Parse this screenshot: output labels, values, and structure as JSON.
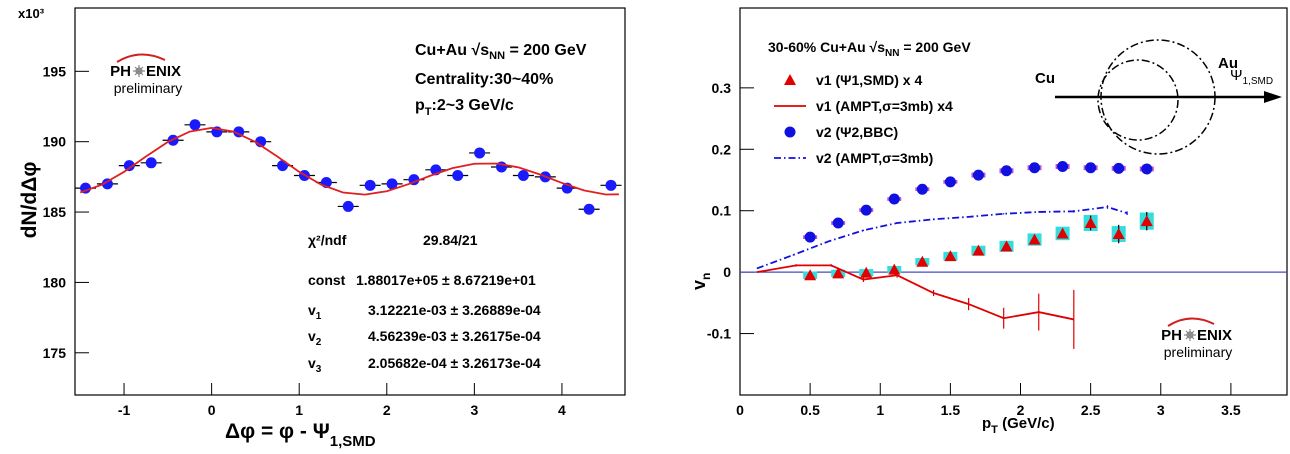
{
  "chart_data": [
    {
      "type": "scatter",
      "y_multiplier": "x10³",
      "ylabel": "dN/dΔφ",
      "xlabel": [
        "Δφ = φ - Ψ",
        "1,SMD"
      ],
      "annotations": [
        [
          "Cu+Au √s",
          "NN",
          " = 200 GeV"
        ],
        [
          "Centrality:30~40%"
        ],
        [
          "p",
          "T",
          ":2~3 GeV/c"
        ]
      ],
      "logo": [
        "PH",
        "ENIX",
        "preliminary"
      ],
      "fit_stats": [
        {
          "name": [
            "χ²/ndf"
          ],
          "value": "29.84/21"
        },
        {
          "name": [
            "const"
          ],
          "value": "1.88017e+05 ± 8.67219e+01"
        },
        {
          "name": [
            "v",
            "1"
          ],
          "value": "3.12221e-03 ± 3.26889e-04"
        },
        {
          "name": [
            "v",
            "2"
          ],
          "value": "4.56239e-03 ± 3.26175e-04"
        },
        {
          "name": [
            "v",
            "3"
          ],
          "value": "2.05682e-04 ± 3.26173e-04"
        }
      ],
      "xlim": [
        -1.56,
        4.72
      ],
      "ylim": [
        172,
        199.5
      ],
      "xticks": [
        -1,
        0,
        1,
        2,
        3,
        4
      ],
      "yticks": [
        175,
        180,
        185,
        190,
        195
      ],
      "series": [
        {
          "mark": "circle",
          "color": "#1a1aff",
          "xerr": 0.12,
          "x": [
            -1.44,
            -1.19,
            -0.94,
            -0.69,
            -0.44,
            -0.19,
            0.06,
            0.31,
            0.56,
            0.81,
            1.06,
            1.31,
            1.56,
            1.81,
            2.06,
            2.31,
            2.56,
            2.81,
            3.06,
            3.31,
            3.56,
            3.81,
            4.06,
            4.31,
            4.56
          ],
          "values": [
            186.7,
            187.0,
            188.3,
            188.5,
            190.1,
            191.2,
            190.7,
            190.7,
            190.0,
            188.3,
            187.6,
            187.1,
            185.4,
            186.9,
            187.0,
            187.3,
            188.0,
            187.6,
            189.2,
            188.2,
            187.6,
            187.5,
            186.7,
            185.2,
            186.9
          ],
          "errors": [
            0.25,
            0.25,
            0.25,
            0.25,
            0.25,
            0.25,
            0.25,
            0.25,
            0.25,
            0.25,
            0.25,
            0.25,
            0.25,
            0.25,
            0.25,
            0.25,
            0.25,
            0.25,
            0.25,
            0.25,
            0.25,
            0.25,
            0.25,
            0.25,
            0.25
          ]
        },
        {
          "mark": "line",
          "line_style": "solid",
          "color": "#e02020",
          "x": [
            -1.5,
            -1.25,
            -1.0,
            -0.75,
            -0.5,
            -0.25,
            0,
            0.25,
            0.5,
            0.75,
            1.0,
            1.25,
            1.5,
            1.75,
            2.0,
            2.25,
            2.5,
            2.75,
            3.0,
            3.25,
            3.5,
            3.75,
            4.0,
            4.25,
            4.5,
            4.65
          ],
          "values": [
            186.39,
            186.95,
            187.86,
            188.95,
            189.98,
            190.72,
            190.98,
            190.72,
            189.98,
            188.95,
            187.86,
            186.95,
            186.39,
            186.24,
            186.48,
            186.99,
            187.59,
            188.12,
            188.43,
            188.45,
            188.18,
            187.67,
            187.07,
            186.54,
            186.25,
            186.26
          ]
        }
      ]
    },
    {
      "type": "scatter",
      "annotations": [
        [
          "30-60% Cu+Au √s",
          "NN",
          " = 200 GeV"
        ]
      ],
      "ylabel": [
        "v",
        "n"
      ],
      "xlabel": [
        "p",
        "T",
        " (GeV/c)"
      ],
      "diagram_labels": [
        "Cu",
        "Au",
        [
          "Ψ",
          "1,SMD"
        ]
      ],
      "logo": [
        "PH",
        "ENIX",
        "preliminary"
      ],
      "legend": "top-left",
      "hline": {
        "value": 0,
        "color": "#4848c8"
      },
      "xlim": [
        0,
        3.9
      ],
      "ylim": [
        -0.2,
        0.43
      ],
      "xticks": [
        0,
        0.5,
        1,
        1.5,
        2,
        2.5,
        3,
        3.5
      ],
      "yticks": [
        -0.1,
        0,
        0.1,
        0.2,
        0.3
      ],
      "series": [
        {
          "name": "v1 (Ψ1,SMD) x 4",
          "mark": "triangle",
          "color": "#e00000",
          "sys_color": "#33dddd",
          "x": [
            0.5,
            0.7,
            0.9,
            1.1,
            1.3,
            1.5,
            1.7,
            1.9,
            2.1,
            2.3,
            2.5,
            2.7,
            2.9
          ],
          "values": [
            -0.005,
            -0.002,
            -0.001,
            0.004,
            0.017,
            0.026,
            0.035,
            0.042,
            0.053,
            0.063,
            0.08,
            0.062,
            0.083
          ],
          "errors": [
            0.003,
            0.003,
            0.003,
            0.003,
            0.003,
            0.003,
            0.004,
            0.005,
            0.006,
            0.008,
            0.012,
            0.015,
            0.015
          ],
          "sys": [
            0.006,
            0.006,
            0.006,
            0.006,
            0.006,
            0.007,
            0.008,
            0.009,
            0.01,
            0.011,
            0.013,
            0.013,
            0.014
          ]
        },
        {
          "name": "v1 (AMPT,σ=3mb) x4",
          "mark": "line",
          "line_style": "solid",
          "color": "#e00000",
          "x": [
            0.12,
            0.4,
            0.65,
            0.88,
            1.12,
            1.38,
            1.63,
            1.88,
            2.13,
            2.38
          ],
          "values": [
            0.0,
            0.011,
            0.011,
            -0.012,
            -0.005,
            -0.034,
            -0.052,
            -0.075,
            -0.065,
            -0.077
          ],
          "errors": [
            0.0,
            0.002,
            0.002,
            0.004,
            0.004,
            0.005,
            0.01,
            0.017,
            0.03,
            0.048
          ]
        },
        {
          "name": "v2 (Ψ2,BBC)",
          "mark": "circle",
          "color": "#1010e0",
          "sys_color": "#c050d0",
          "x": [
            0.5,
            0.7,
            0.9,
            1.1,
            1.3,
            1.5,
            1.7,
            1.9,
            2.1,
            2.3,
            2.5,
            2.7,
            2.9
          ],
          "values": [
            0.057,
            0.08,
            0.101,
            0.119,
            0.135,
            0.147,
            0.158,
            0.165,
            0.17,
            0.172,
            0.17,
            0.169,
            0.168
          ],
          "errors": [
            0.001,
            0.001,
            0.001,
            0.001,
            0.001,
            0.001,
            0.001,
            0.001,
            0.001,
            0.002,
            0.002,
            0.002,
            0.002
          ],
          "sys": [
            0.003,
            0.003,
            0.003,
            0.003,
            0.003,
            0.003,
            0.004,
            0.004,
            0.004,
            0.004,
            0.004,
            0.004,
            0.004
          ]
        },
        {
          "name": "v2 (AMPT,σ=3mb)",
          "mark": "line",
          "line_style": "dashdot",
          "color": "#1010e0",
          "x": [
            0.12,
            0.38,
            0.63,
            0.88,
            1.12,
            1.38,
            1.63,
            1.88,
            2.13,
            2.38,
            2.62,
            2.76
          ],
          "values": [
            0.006,
            0.028,
            0.05,
            0.068,
            0.08,
            0.086,
            0.09,
            0.095,
            0.098,
            0.099,
            0.106,
            0.096
          ],
          "errors": [
            0.0,
            0.001,
            0.001,
            0.001,
            0.001,
            0.001,
            0.001,
            0.001,
            0.001,
            0.002,
            0.003,
            0.003
          ]
        }
      ]
    }
  ]
}
